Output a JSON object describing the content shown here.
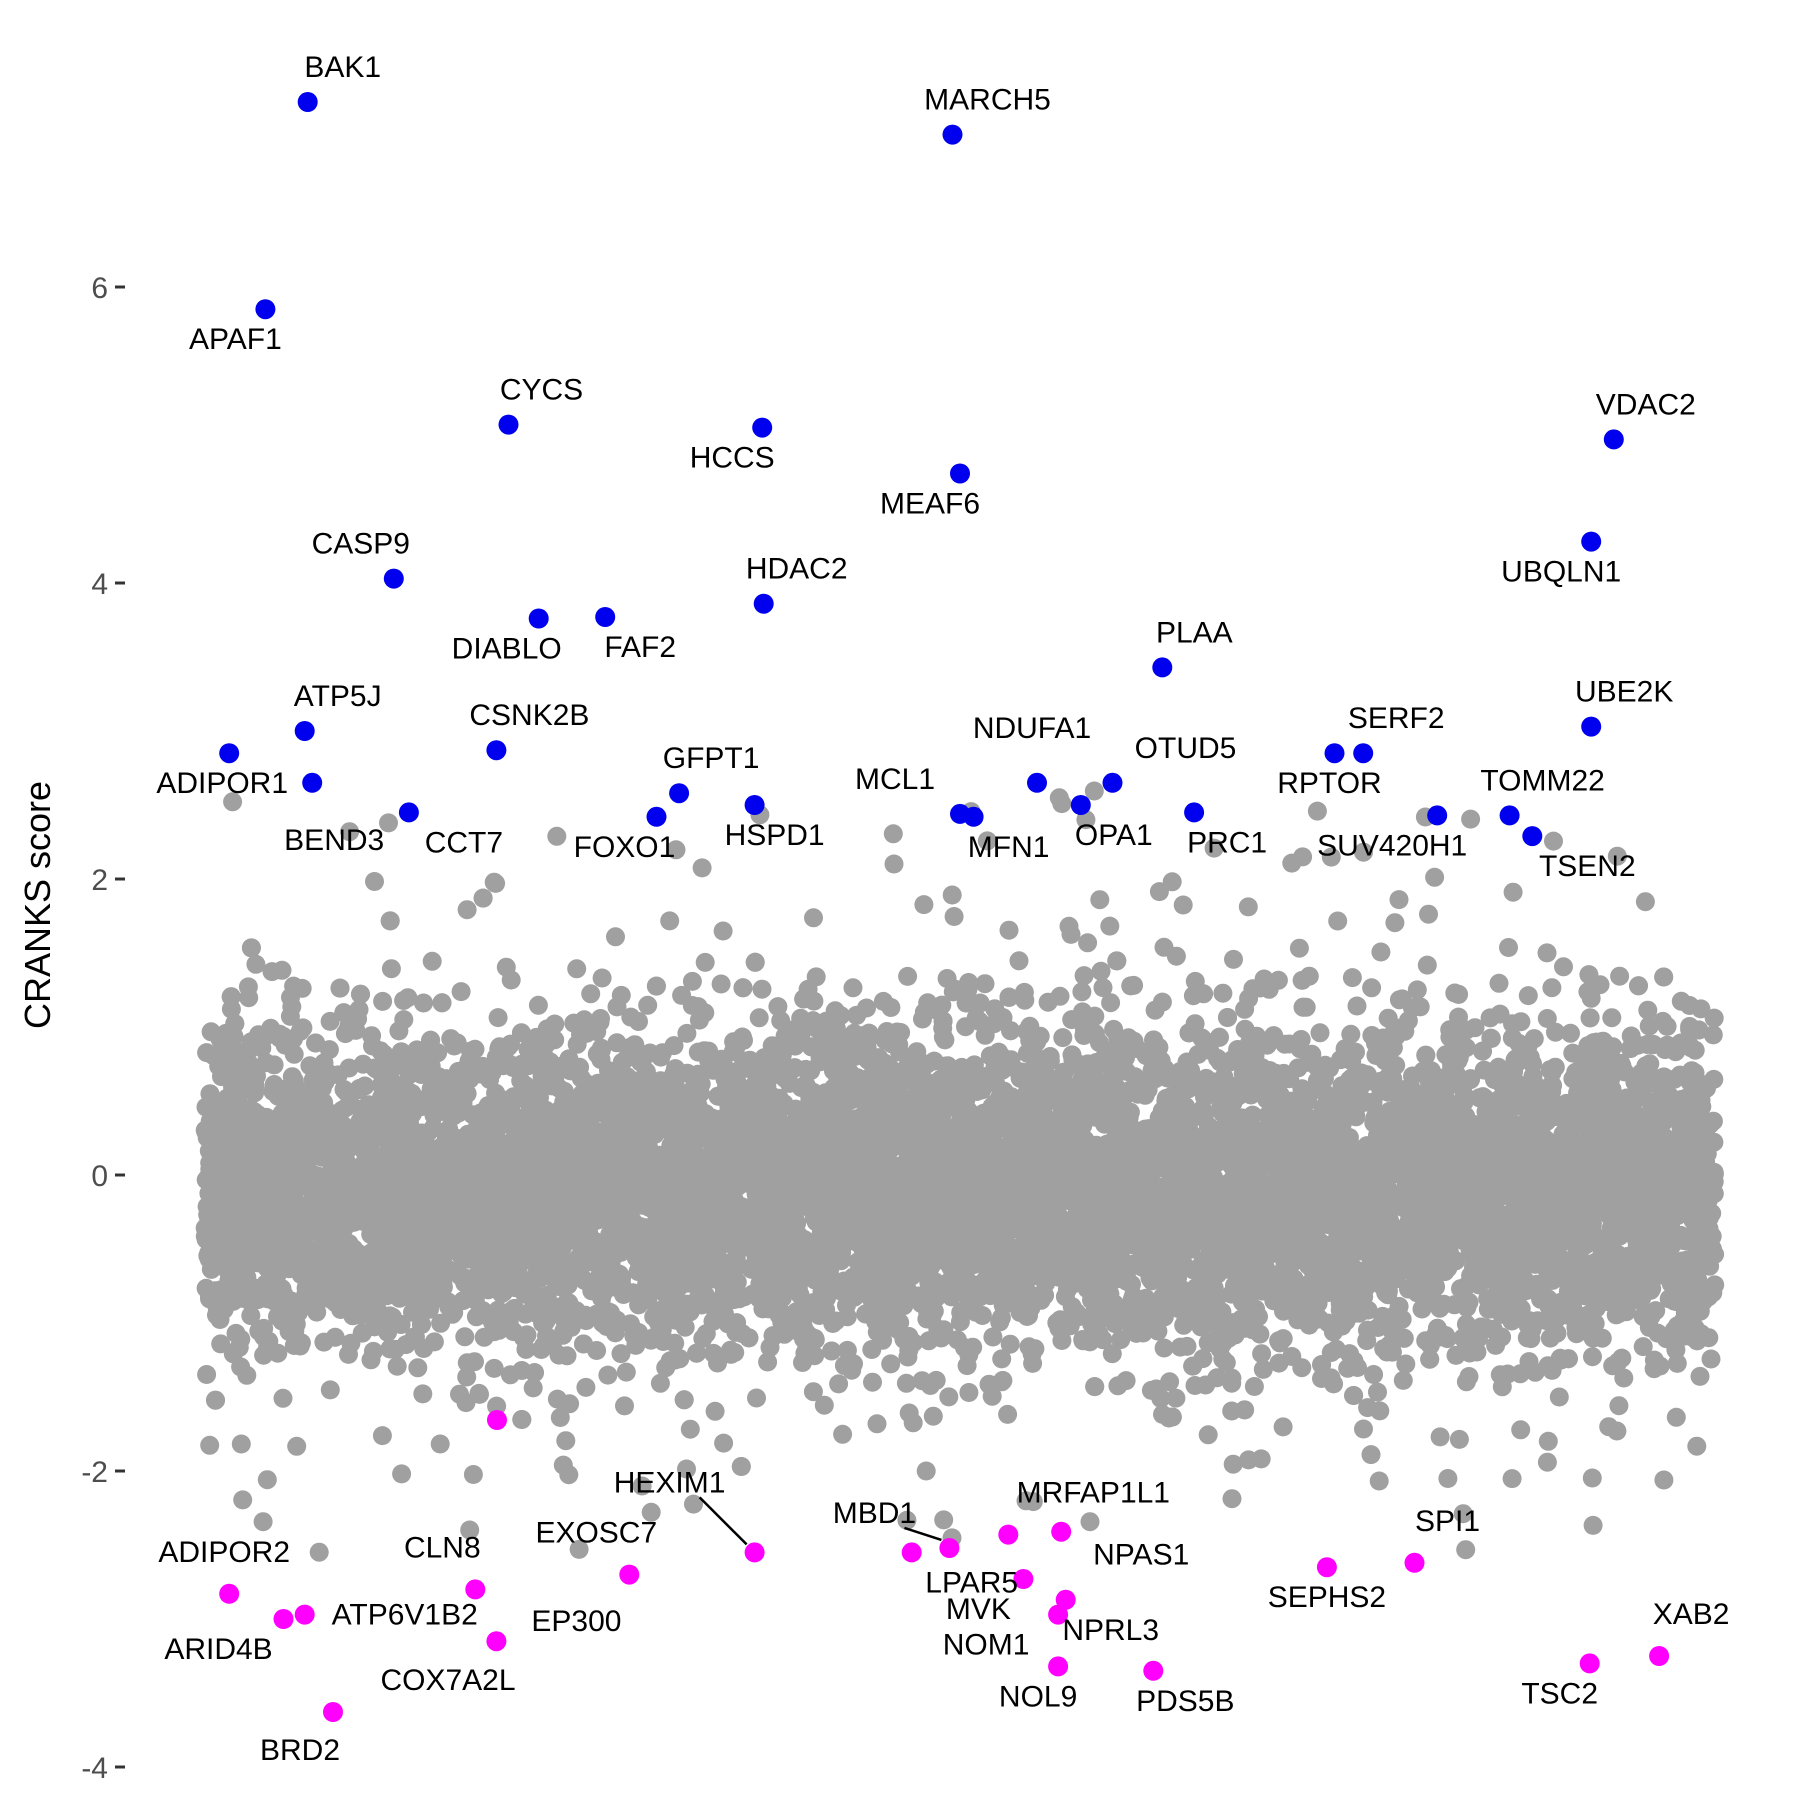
{
  "chart_data": {
    "type": "scatter",
    "ylabel": "CRANKS score",
    "xlabel": "",
    "ylim": [
      -4,
      7.3
    ],
    "yticks": [
      -4,
      -2,
      0,
      2,
      4,
      6
    ],
    "grid": false,
    "legend": "none",
    "colors": {
      "background": "#a0a0a0",
      "high": "#0000ee",
      "low": "#ff00ff",
      "axis_text": "#4d4d4d"
    },
    "background_points": {
      "color": "#a0a0a0",
      "count_approx": 18000,
      "distribution": "approximately normal, mean -0.1, sd 0.55, range about -2.5 to 2.7"
    },
    "highlighted": [
      {
        "gene": "BAK1",
        "x": 0.068,
        "y": 7.25,
        "group": "high"
      },
      {
        "gene": "MARCH5",
        "x": 0.495,
        "y": 7.03,
        "group": "high"
      },
      {
        "gene": "APAF1",
        "x": 0.04,
        "y": 5.85,
        "group": "high"
      },
      {
        "gene": "CYCS",
        "x": 0.201,
        "y": 5.07,
        "group": "high"
      },
      {
        "gene": "HCCS",
        "x": 0.369,
        "y": 5.05,
        "group": "high"
      },
      {
        "gene": "VDAC2",
        "x": 0.933,
        "y": 4.97,
        "group": "high"
      },
      {
        "gene": "MEAF6",
        "x": 0.5,
        "y": 4.74,
        "group": "high"
      },
      {
        "gene": "UBQLN1",
        "x": 0.918,
        "y": 4.28,
        "group": "high"
      },
      {
        "gene": "CASP9",
        "x": 0.125,
        "y": 4.03,
        "group": "high"
      },
      {
        "gene": "HDAC2",
        "x": 0.37,
        "y": 3.86,
        "group": "high"
      },
      {
        "gene": "DIABLO",
        "x": 0.221,
        "y": 3.76,
        "group": "high"
      },
      {
        "gene": "FAF2",
        "x": 0.265,
        "y": 3.77,
        "group": "high"
      },
      {
        "gene": "PLAA",
        "x": 0.634,
        "y": 3.43,
        "group": "high"
      },
      {
        "gene": "UBE2K",
        "x": 0.918,
        "y": 3.03,
        "group": "high"
      },
      {
        "gene": "ATP5J",
        "x": 0.066,
        "y": 3.0,
        "group": "high"
      },
      {
        "gene": "CSNK2B",
        "x": 0.193,
        "y": 2.87,
        "group": "high"
      },
      {
        "gene": "SERF2",
        "x": 0.767,
        "y": 2.85,
        "group": "high"
      },
      {
        "gene": "RPTOR",
        "x": 0.748,
        "y": 2.85,
        "group": "high"
      },
      {
        "gene": "ADIPOR1",
        "x": 0.016,
        "y": 2.85,
        "group": "high"
      },
      {
        "gene": "BEND3",
        "x": 0.071,
        "y": 2.65,
        "group": "high"
      },
      {
        "gene": "NDUFA1",
        "x": 0.551,
        "y": 2.65,
        "group": "high"
      },
      {
        "gene": "OTUD5",
        "x": 0.601,
        "y": 2.65,
        "group": "high"
      },
      {
        "gene": "GFPT1",
        "x": 0.314,
        "y": 2.58,
        "group": "high"
      },
      {
        "gene": "HSPD1",
        "x": 0.364,
        "y": 2.5,
        "group": "high"
      },
      {
        "gene": "OPA1",
        "x": 0.58,
        "y": 2.5,
        "group": "high"
      },
      {
        "gene": "CCT7",
        "x": 0.135,
        "y": 2.45,
        "group": "high"
      },
      {
        "gene": "PRC1",
        "x": 0.655,
        "y": 2.45,
        "group": "high"
      },
      {
        "gene": "MCL1",
        "x": 0.5,
        "y": 2.44,
        "group": "high"
      },
      {
        "gene": "MFN1",
        "x": 0.509,
        "y": 2.42,
        "group": "high"
      },
      {
        "gene": "FOXO1",
        "x": 0.299,
        "y": 2.42,
        "group": "high"
      },
      {
        "gene": "SUV420H1",
        "x": 0.816,
        "y": 2.43,
        "group": "high"
      },
      {
        "gene": "TOMM22",
        "x": 0.864,
        "y": 2.43,
        "group": "high"
      },
      {
        "gene": "TSEN2",
        "x": 0.879,
        "y": 2.29,
        "group": "high"
      },
      {
        "gene": "HEXIM1",
        "x": 0.364,
        "y": -2.55,
        "group": "low"
      },
      {
        "gene": "MBD1",
        "x": 0.493,
        "y": -2.52,
        "group": "low"
      },
      {
        "gene": "MRFAP1L1",
        "x": 0.532,
        "y": -2.43,
        "group": "low"
      },
      {
        "gene": "MVK",
        "x": 0.542,
        "y": -2.73,
        "group": "low"
      },
      {
        "gene": "NPAS1",
        "x": 0.567,
        "y": -2.41,
        "group": "low"
      },
      {
        "gene": "LPAR5",
        "x": 0.468,
        "y": -2.55,
        "group": "low"
      },
      {
        "gene": "SPI1",
        "x": 0.801,
        "y": -2.62,
        "group": "low"
      },
      {
        "gene": "SEPHS2",
        "x": 0.743,
        "y": -2.65,
        "group": "low"
      },
      {
        "gene": "ADIPOR2",
        "x": 0.016,
        "y": -2.83,
        "group": "low"
      },
      {
        "gene": "CLN8",
        "x": 0.179,
        "y": -2.8,
        "group": "low"
      },
      {
        "gene": "EXOSC7",
        "x": 0.281,
        "y": -2.7,
        "group": "low"
      },
      {
        "gene": "NPRL3",
        "x": 0.57,
        "y": -2.87,
        "group": "low"
      },
      {
        "gene": "NOM1",
        "x": 0.565,
        "y": -2.97,
        "group": "low"
      },
      {
        "gene": "ARID4B",
        "x": 0.052,
        "y": -3.0,
        "group": "low"
      },
      {
        "gene": "ATP6V1B2",
        "x": 0.066,
        "y": -2.97,
        "group": "low"
      },
      {
        "gene": "EP300",
        "x": 0.193,
        "y": -3.15,
        "group": "low"
      },
      {
        "gene": "XAB2",
        "x": 0.963,
        "y": -3.25,
        "group": "low"
      },
      {
        "gene": "TSC2",
        "x": 0.917,
        "y": -3.3,
        "group": "low"
      },
      {
        "gene": "NOL9",
        "x": 0.565,
        "y": -3.32,
        "group": "low"
      },
      {
        "gene": "PDS5B",
        "x": 0.628,
        "y": -3.35,
        "group": "low"
      },
      {
        "gene": "COX7A2L",
        "x": 0.088,
        "y": -3.65,
        "group": "low"
      },
      {
        "gene": "BRD2",
        "x": 0.088,
        "y": -3.65,
        "group": "low"
      }
    ]
  }
}
